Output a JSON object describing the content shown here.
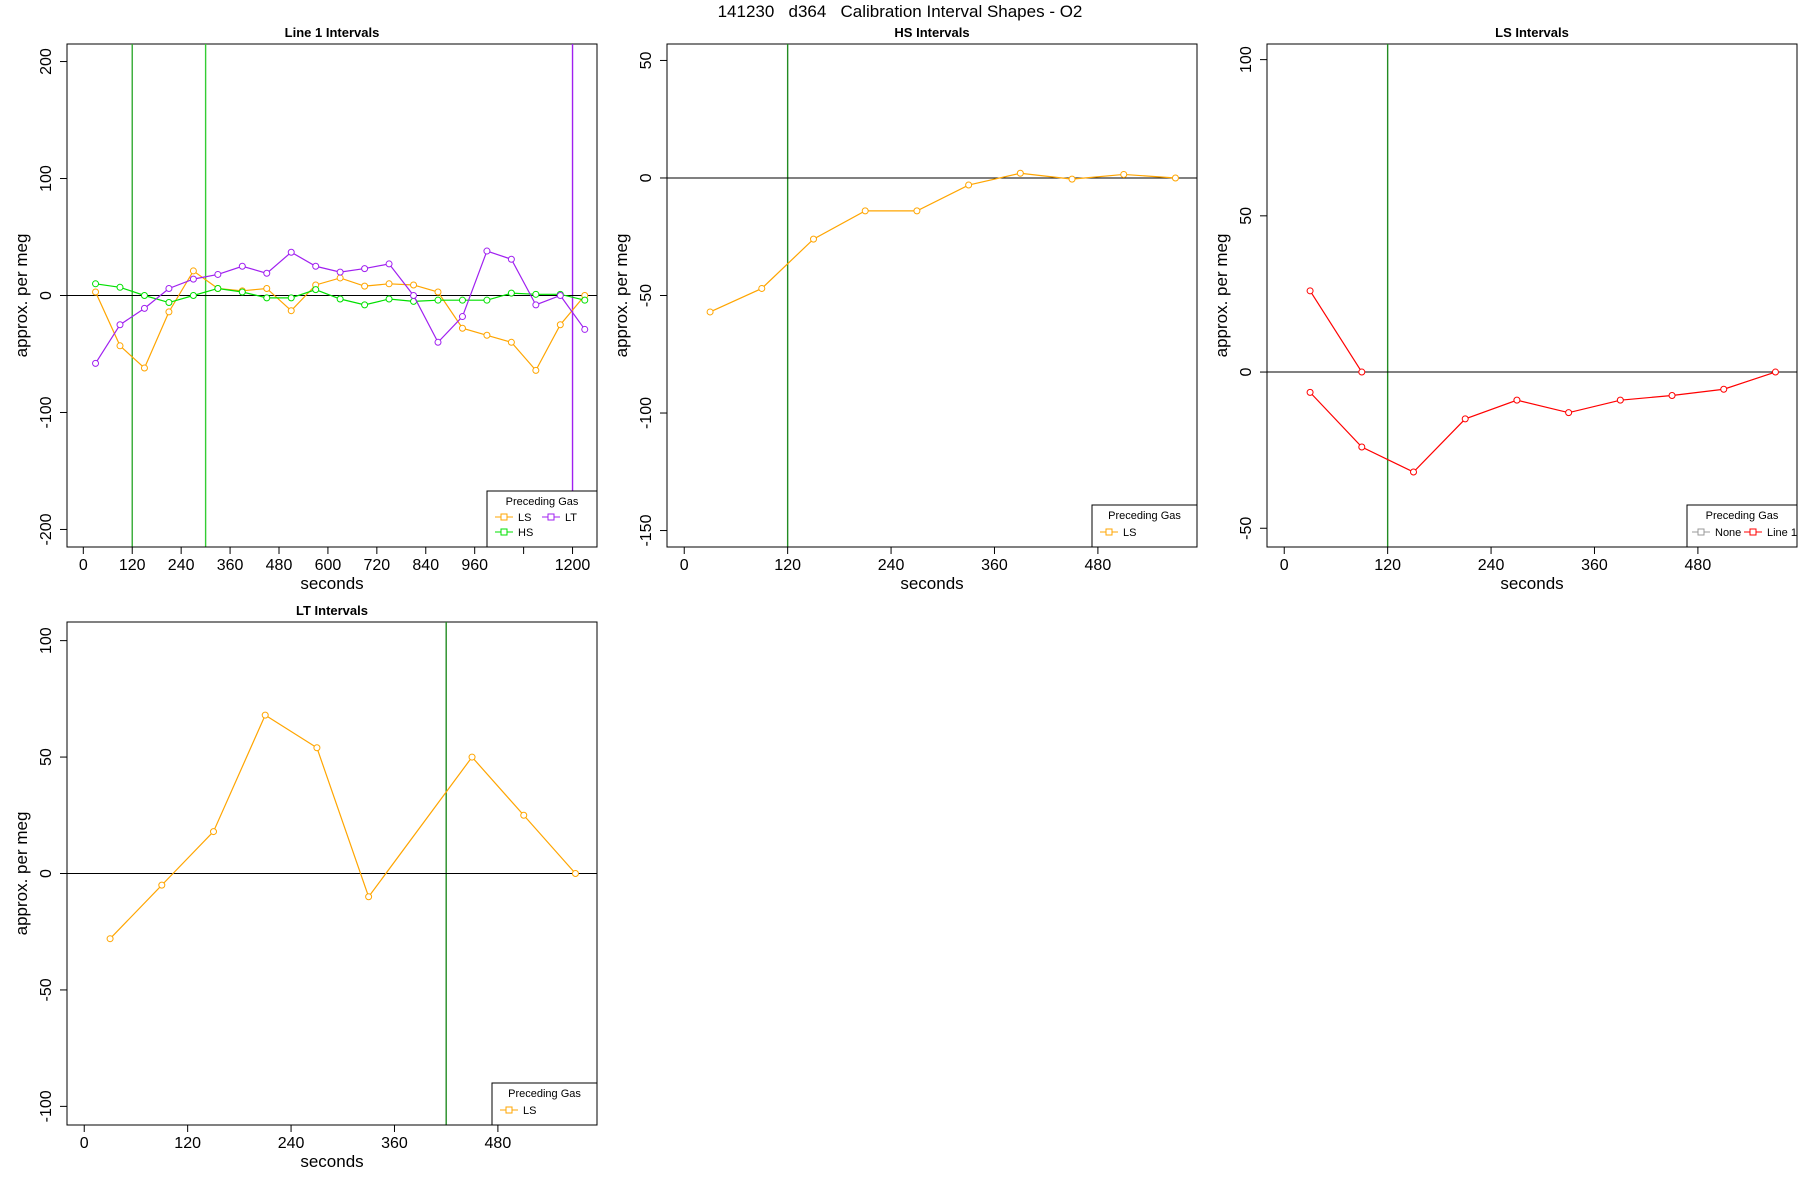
{
  "page_title": "141230   d364   Calibration Interval Shapes - O2",
  "colors": {
    "LS": "#FFA500",
    "HS": "#00E000",
    "LT": "#A020F0",
    "None": "#999999",
    "Line 1": "#FF0000",
    "marker_green": "#228B22",
    "marker_bright": "#33CC33"
  },
  "chart_data": [
    {
      "type": "line",
      "title": "Line 1 Intervals",
      "xlabel": "seconds",
      "ylabel": "approx. per meg",
      "xlim": [
        -40,
        1260
      ],
      "ylim": [
        -215,
        215
      ],
      "xticks": [
        0,
        120,
        240,
        360,
        480,
        600,
        720,
        840,
        960,
        1080,
        1200
      ],
      "xticklabels": [
        "0",
        "120",
        "240",
        "360",
        "480",
        "600",
        "720",
        "840",
        "960",
        "",
        "1200"
      ],
      "yticks": [
        -200,
        -100,
        0,
        100,
        200
      ],
      "hlines": [
        0
      ],
      "vlines": [
        {
          "x": 120,
          "color": "#33AA33"
        },
        {
          "x": 300,
          "color": "#33CC33"
        },
        {
          "x": 1200,
          "color": "#A020F0"
        }
      ],
      "legend": {
        "title": "Preceding Gas",
        "position": "bottom-right",
        "entries": [
          "LS",
          "LT",
          "HS"
        ]
      },
      "series": [
        {
          "name": "LS",
          "color": "#FFA500",
          "segments": [
            {
              "x": [
                30,
                90,
                150,
                210,
                270,
                330,
                390,
                450,
                510,
                570,
                630,
                690,
                750,
                810,
                870,
                930,
                990,
                1050,
                1110,
                1170,
                1230
              ],
              "y": [
                3,
                -43,
                -62,
                -14,
                21,
                6,
                4,
                6,
                -13,
                9,
                15,
                8,
                10,
                9,
                3,
                -28,
                -34,
                -40,
                -64,
                -25,
                0
              ]
            }
          ]
        },
        {
          "name": "HS",
          "color": "#00E000",
          "segments": [
            {
              "x": [
                30,
                90,
                150,
                210,
                270,
                330,
                390,
                450,
                510,
                570,
                630,
                690,
                750,
                810,
                870,
                930,
                990,
                1050,
                1110,
                1170,
                1230
              ],
              "y": [
                10,
                7,
                0,
                -6,
                0,
                6,
                3,
                -2,
                -2,
                5,
                -3,
                -8,
                -3,
                -5,
                -4,
                -4,
                -4,
                2,
                1,
                1,
                -4
              ]
            }
          ]
        },
        {
          "name": "LT",
          "color": "#A020F0",
          "segments": [
            {
              "x": [
                30,
                90,
                150,
                210,
                270,
                330,
                390,
                450,
                510,
                570,
                630,
                690,
                750,
                810,
                870,
                930,
                990,
                1050,
                1110,
                1170,
                1230
              ],
              "y": [
                -58,
                -25,
                -11,
                6,
                14,
                18,
                25,
                19,
                37,
                25,
                20,
                23,
                27,
                0,
                -40,
                -18,
                38,
                31,
                -8,
                0,
                -29
              ]
            }
          ]
        }
      ]
    },
    {
      "type": "line",
      "title": "HS Intervals",
      "xlabel": "seconds",
      "ylabel": "approx. per meg",
      "xlim": [
        -20,
        595
      ],
      "ylim": [
        -157,
        57
      ],
      "xticks": [
        0,
        120,
        240,
        360,
        480
      ],
      "xticklabels": [
        "0",
        "120",
        "240",
        "360",
        "480"
      ],
      "yticks": [
        -150,
        -100,
        -50,
        0,
        50
      ],
      "hlines": [
        0
      ],
      "vlines": [
        {
          "x": 120,
          "color": "#228B22"
        }
      ],
      "legend": {
        "title": "Preceding Gas",
        "position": "bottom-right",
        "entries": [
          "LS"
        ]
      },
      "series": [
        {
          "name": "LS",
          "color": "#FFA500",
          "segments": [
            {
              "x": [
                30,
                90,
                150,
                210,
                270,
                330,
                390,
                450,
                510,
                570
              ],
              "y": [
                -57,
                -47,
                -26,
                -14,
                -14,
                -3,
                2,
                -0.5,
                1.5,
                0
              ]
            }
          ]
        }
      ]
    },
    {
      "type": "line",
      "title": "LS Intervals",
      "xlabel": "seconds",
      "ylabel": "approx. per meg",
      "xlim": [
        -20,
        595
      ],
      "ylim": [
        -56,
        105
      ],
      "xticks": [
        0,
        120,
        240,
        360,
        480
      ],
      "xticklabels": [
        "0",
        "120",
        "240",
        "360",
        "480"
      ],
      "yticks": [
        -50,
        0,
        50,
        100
      ],
      "hlines": [
        0
      ],
      "vlines": [
        {
          "x": 120,
          "color": "#228B22"
        }
      ],
      "legend": {
        "title": "Preceding Gas",
        "position": "bottom-right",
        "entries": [
          "None",
          "Line 1"
        ]
      },
      "series": [
        {
          "name": "Line 1",
          "color": "#FF0000",
          "segments": [
            {
              "x": [
                30,
                90
              ],
              "y": [
                26,
                0
              ]
            },
            {
              "x": [
                30,
                90,
                150,
                210,
                270,
                330,
                390,
                450,
                510,
                570
              ],
              "y": [
                -6.5,
                -24,
                -32,
                -15,
                -9,
                -13,
                -9,
                -7.5,
                -5.5,
                0
              ]
            }
          ]
        }
      ]
    },
    {
      "type": "line",
      "title": "LT Intervals",
      "xlabel": "seconds",
      "ylabel": "approx. per meg",
      "xlim": [
        -20,
        595
      ],
      "ylim": [
        -108,
        108
      ],
      "xticks": [
        0,
        120,
        240,
        360,
        480
      ],
      "xticklabels": [
        "0",
        "120",
        "240",
        "360",
        "480"
      ],
      "yticks": [
        -100,
        -50,
        0,
        50,
        100
      ],
      "hlines": [
        0
      ],
      "vlines": [
        {
          "x": 420,
          "color": "#228B22"
        }
      ],
      "legend": {
        "title": "Preceding Gas",
        "position": "bottom-right",
        "entries": [
          "LS"
        ]
      },
      "series": [
        {
          "name": "LS",
          "color": "#FFA500",
          "segments": [
            {
              "x": [
                30,
                90,
                150,
                210,
                270,
                330,
                450,
                510,
                570
              ],
              "y": [
                -28,
                -5,
                18,
                68,
                54,
                -10,
                50,
                25,
                0
              ]
            }
          ]
        }
      ]
    }
  ]
}
